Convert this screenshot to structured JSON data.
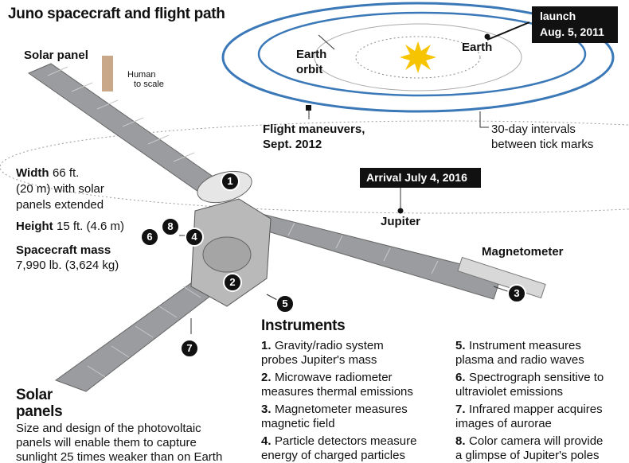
{
  "title": "Juno spacecraft and flight path",
  "spacecraft": {
    "solar_panel_label": "Solar panel",
    "human_label": [
      "Human",
      "to scale"
    ],
    "magnetometer_label": "Magnetometer",
    "specs": [
      {
        "label": "Width",
        "lines": [
          "66 ft.",
          "(20 m) with solar",
          "panels extended"
        ]
      },
      {
        "label": "Height",
        "lines": [
          "15 ft. (4.6 m)"
        ]
      },
      {
        "label": "Spacecraft mass",
        "lines": [
          "7,990 lb. (3,624 kg)"
        ]
      }
    ],
    "markers": [
      "1",
      "2",
      "3",
      "4",
      "5",
      "6",
      "7",
      "8"
    ]
  },
  "flight_path": {
    "launch": [
      "launch",
      "Aug. 5, 2011"
    ],
    "earth": "Earth",
    "earth_orbit": [
      "Earth",
      "orbit"
    ],
    "maneuvers": [
      "Flight maneuvers,",
      "Sept. 2012"
    ],
    "intervals": [
      "30-day intervals",
      "between tick marks"
    ],
    "arrival": "Arrival July 4, 2016",
    "jupiter": "Jupiter"
  },
  "instruments": {
    "heading": "Instruments",
    "items": [
      {
        "number": "1.",
        "lines": [
          "Gravity/radio system",
          "probes Jupiter's mass"
        ]
      },
      {
        "number": "2.",
        "lines": [
          "Microwave radiometer",
          "measures thermal emissions"
        ]
      },
      {
        "number": "3.",
        "lines": [
          "Magnetometer measures",
          "magnetic field"
        ]
      },
      {
        "number": "4.",
        "lines": [
          "Particle detectors measure",
          "energy of charged particles"
        ]
      },
      {
        "number": "5.",
        "lines": [
          "Instrument measures",
          "plasma and radio waves"
        ]
      },
      {
        "number": "6.",
        "lines": [
          "Spectrograph sensitive to",
          "ultraviolet emissions"
        ]
      },
      {
        "number": "7.",
        "lines": [
          "Infrared mapper acquires",
          "images of aurorae"
        ]
      },
      {
        "number": "8.",
        "lines": [
          "Color camera will provide",
          "a glimpse of Jupiter's poles"
        ]
      }
    ]
  },
  "solar_panels": {
    "heading": [
      "Solar",
      "panels"
    ],
    "lines": [
      "Size and design of the photovoltaic",
      "panels will enable them to capture",
      "sunlight 25 times weaker than on Earth"
    ]
  }
}
